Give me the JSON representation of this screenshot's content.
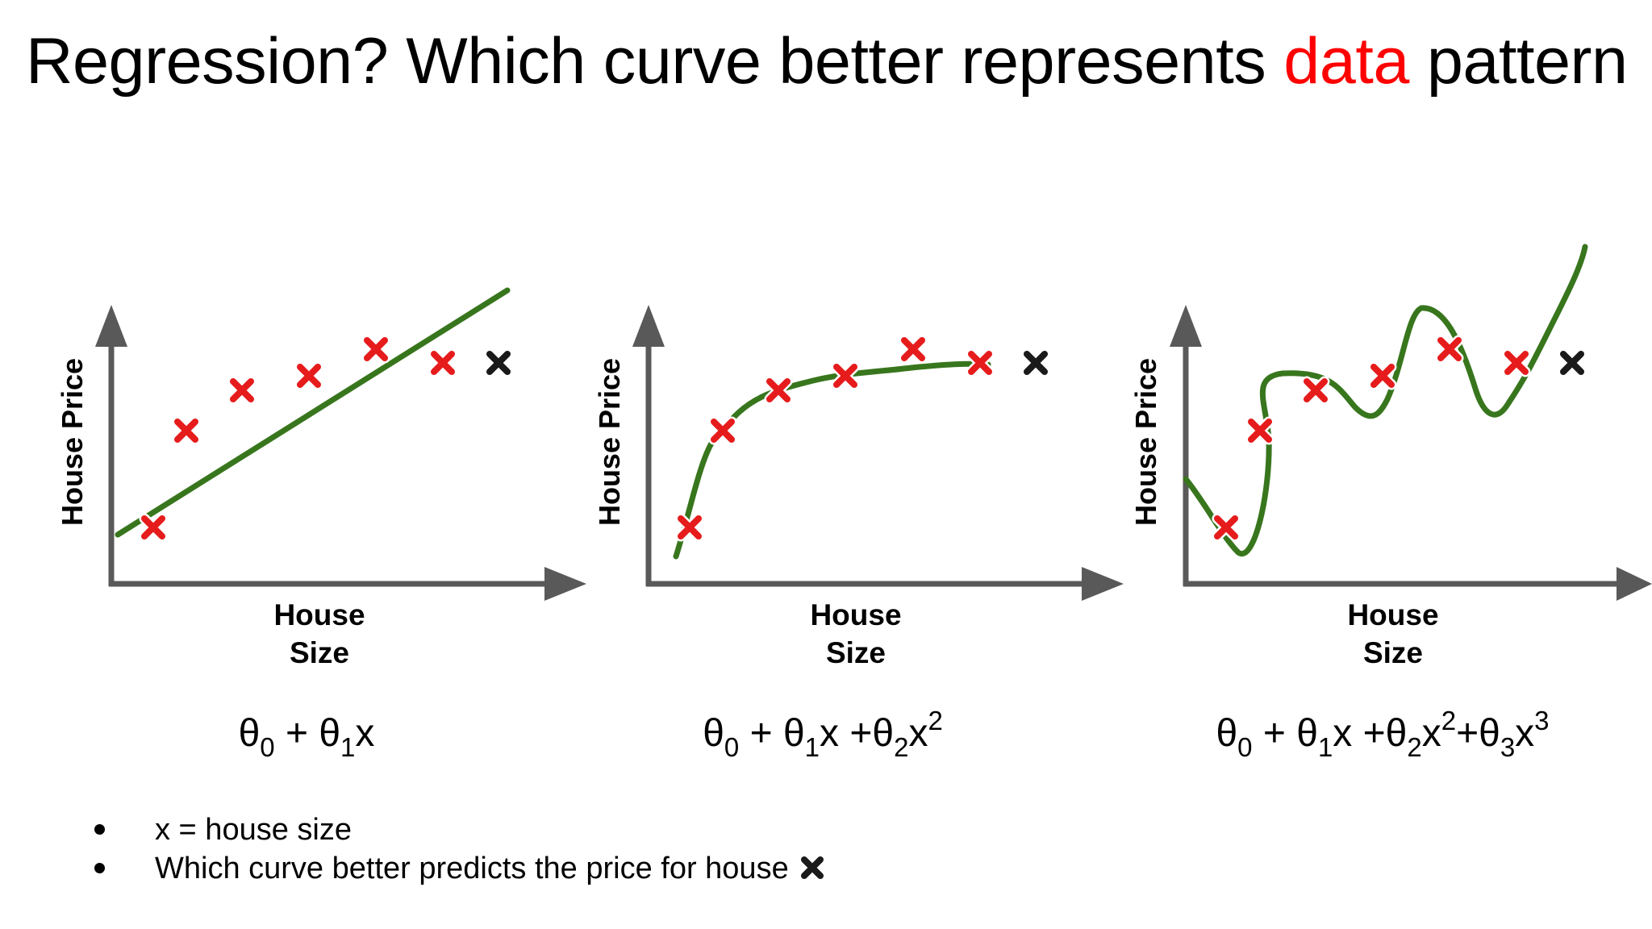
{
  "title": {
    "prefix": "Regression? Which curve better represents ",
    "highlight": "data",
    "suffix": " pattern",
    "highlight_color": "#ff0000"
  },
  "colors": {
    "curve": "#38761d",
    "data_point": "#e61c1c",
    "query_point": "#1a1a1a",
    "axis": "#595959"
  },
  "panels": [
    {
      "ylabel": "House Price",
      "xlabel_line1": "House",
      "xlabel_line2": "Size",
      "formula": {
        "t0": "θ",
        "s0": "0",
        "a": " + θ",
        "s1": "1",
        "b": "x"
      }
    },
    {
      "ylabel": "House Price",
      "xlabel_line1": "House",
      "xlabel_line2": "Size",
      "formula": {
        "t0": "θ",
        "s0": "0",
        "a": " + θ",
        "s1": "1",
        "b": "x +θ",
        "s2": "2",
        "c": "x",
        "p2": "2"
      }
    },
    {
      "ylabel": "House Price",
      "xlabel_line1": "House",
      "xlabel_line2": "Size",
      "formula": {
        "t0": "θ",
        "s0": "0",
        "a": " + θ",
        "s1": "1",
        "b": "x +θ",
        "s2": "2",
        "c": "x",
        "p2": "2",
        "d": "+θ",
        "s3": "3",
        "e": "x",
        "p3": "3"
      }
    }
  ],
  "bullets": [
    "x = house size",
    "Which curve better predicts the price for house"
  ]
}
